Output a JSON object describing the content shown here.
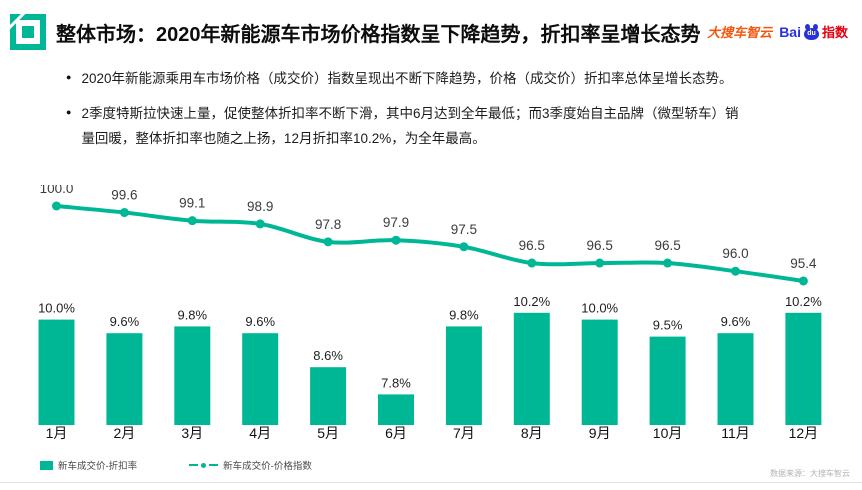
{
  "header": {
    "title": "整体市场：2020年新能源车市场价格指数呈下降趋势，折扣率呈增长态势",
    "logo_dasouche": "大搜车智云",
    "logo_baidu_prefix": "Bai",
    "logo_baidu_paw": "du",
    "logo_baidu_suffix": "指数"
  },
  "bullets": [
    "2020年新能源乘用车市场价格（成交价）指数呈现出不断下降趋势，价格（成交价）折扣率总体呈增长态势。",
    "2季度特斯拉快速上量，促使整体折扣率不断下滑，其中6月达到全年最低；而3季度始自主品牌（微型轿车）销量回暖，整体折扣率也随之上扬，12月折扣率10.2%，为全年最高。"
  ],
  "colors": {
    "accent": "#00b795",
    "dasouche_orange": "#f4570f",
    "baidu_blue": "#2832dc",
    "baidu_red": "#e60012"
  },
  "chart_data": {
    "type": "bar",
    "subtype": "bar+line combo",
    "categories": [
      "1月",
      "2月",
      "3月",
      "4月",
      "5月",
      "6月",
      "7月",
      "8月",
      "9月",
      "10月",
      "11月",
      "12月"
    ],
    "series": [
      {
        "name": "新车成交价-折扣率",
        "type": "bar",
        "unit": "%",
        "values": [
          10.0,
          9.6,
          9.8,
          9.6,
          8.6,
          7.8,
          9.8,
          10.2,
          10.0,
          9.5,
          9.6,
          10.2
        ]
      },
      {
        "name": "新车成交价-价格指数",
        "type": "line",
        "values": [
          100.0,
          99.6,
          99.1,
          98.9,
          97.8,
          97.9,
          97.5,
          96.5,
          96.5,
          96.5,
          96.0,
          95.4
        ]
      }
    ],
    "title": "",
    "xlabel": "",
    "ylabel": "",
    "grid": false,
    "legend_position": "bottom",
    "data_labels": true
  },
  "footer": {
    "source": "数据来源：大搜车智云"
  }
}
